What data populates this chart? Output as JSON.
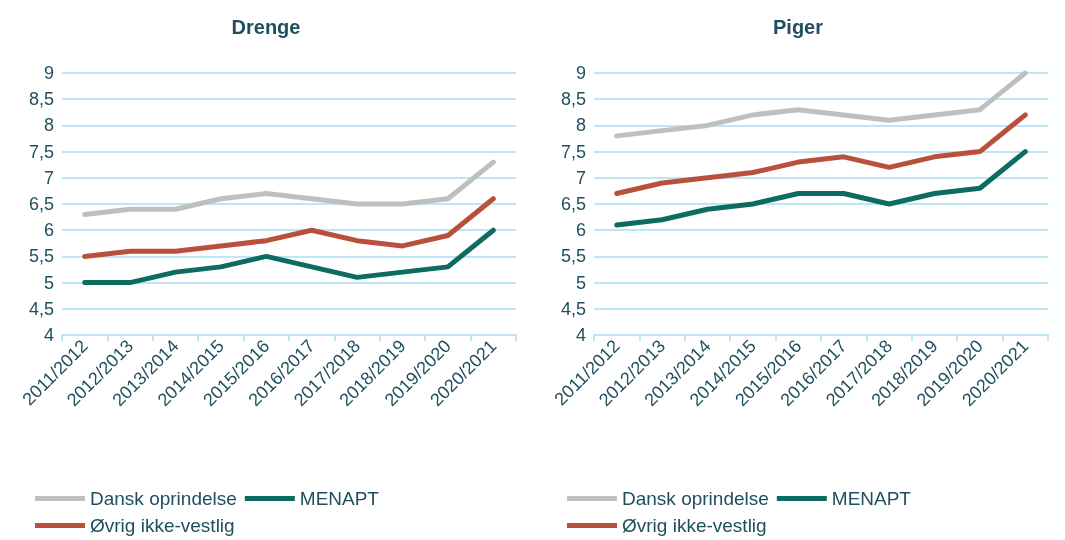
{
  "chart_data": [
    {
      "type": "line",
      "title": "Drenge",
      "categories": [
        "2011/2012",
        "2012/2013",
        "2013/2014",
        "2014/2015",
        "2015/2016",
        "2016/2017",
        "2017/2018",
        "2018/2019",
        "2019/2020",
        "2020/2021"
      ],
      "series": [
        {
          "name": "Dansk oprindelse",
          "color": "#bfbfbf",
          "values": [
            6.3,
            6.4,
            6.4,
            6.6,
            6.7,
            6.6,
            6.5,
            6.5,
            6.6,
            7.3
          ]
        },
        {
          "name": "MENAPT",
          "color": "#0e6b62",
          "values": [
            5.0,
            5.0,
            5.2,
            5.3,
            5.5,
            5.3,
            5.1,
            5.2,
            5.3,
            6.0
          ]
        },
        {
          "name": "Øvrig ikke-vestlig",
          "color": "#b9503c",
          "values": [
            5.5,
            5.6,
            5.6,
            5.7,
            5.8,
            6.0,
            5.8,
            5.7,
            5.9,
            6.6
          ]
        }
      ],
      "ylim": [
        4,
        9
      ],
      "yticks": [
        4,
        {
          "value": 4.5,
          "label": "4,5"
        },
        5,
        {
          "value": 5.5,
          "label": "5,5"
        },
        6,
        {
          "value": 6.5,
          "label": "6,5"
        },
        7,
        {
          "value": 7.5,
          "label": "7,5"
        },
        8,
        {
          "value": 8.5,
          "label": "8,5"
        },
        9
      ],
      "grid": "y",
      "legend": "bottom",
      "marker": "none",
      "line_style": "solid"
    },
    {
      "type": "line",
      "title": "Piger",
      "categories": [
        "2011/2012",
        "2012/2013",
        "2013/2014",
        "2014/2015",
        "2015/2016",
        "2016/2017",
        "2017/2018",
        "2018/2019",
        "2019/2020",
        "2020/2021"
      ],
      "series": [
        {
          "name": "Dansk oprindelse",
          "color": "#bfbfbf",
          "values": [
            7.8,
            7.9,
            8.0,
            8.2,
            8.3,
            8.2,
            8.1,
            8.2,
            8.3,
            9.0
          ]
        },
        {
          "name": "MENAPT",
          "color": "#0e6b62",
          "values": [
            6.1,
            6.2,
            6.4,
            6.5,
            6.7,
            6.7,
            6.5,
            6.7,
            6.8,
            7.5
          ]
        },
        {
          "name": "Øvrig ikke-vestlig",
          "color": "#b9503c",
          "values": [
            6.7,
            6.9,
            7.0,
            7.1,
            7.3,
            7.4,
            7.2,
            7.4,
            7.5,
            8.2
          ]
        }
      ],
      "ylim": [
        4,
        9
      ],
      "yticks": [
        4,
        {
          "value": 4.5,
          "label": "4,5"
        },
        5,
        {
          "value": 5.5,
          "label": "5,5"
        },
        6,
        {
          "value": 6.5,
          "label": "6,5"
        },
        7,
        {
          "value": 7.5,
          "label": "7,5"
        },
        8,
        {
          "value": 8.5,
          "label": "8,5"
        },
        9
      ],
      "grid": "y",
      "legend": "bottom",
      "marker": "none",
      "line_style": "solid"
    }
  ]
}
